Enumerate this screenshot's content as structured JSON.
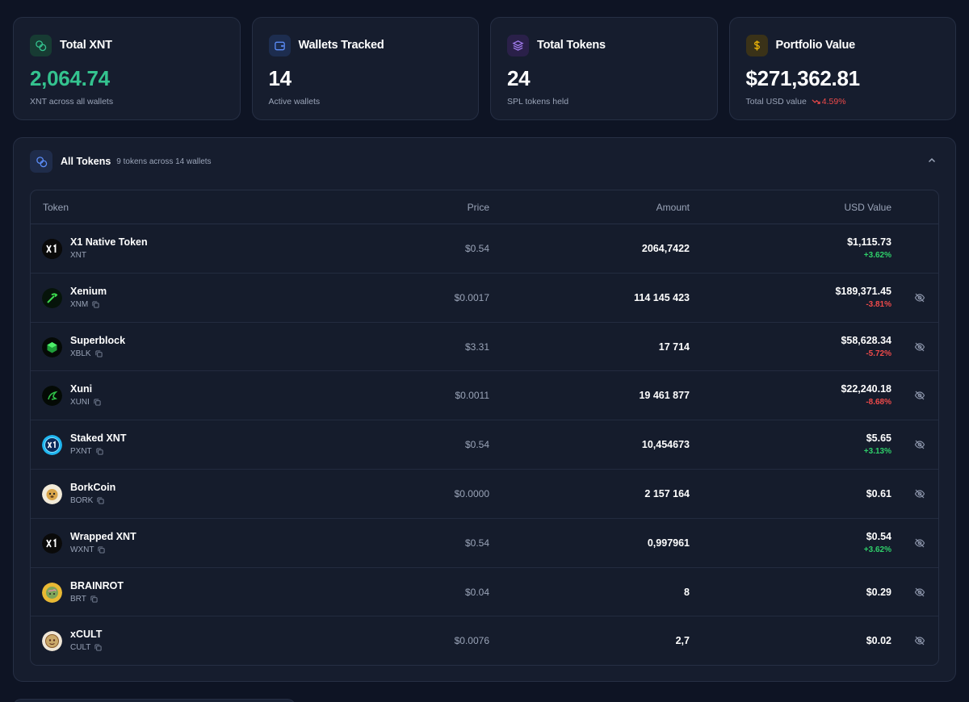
{
  "stats": [
    {
      "title": "Total XNT",
      "value": "2,064.74",
      "sub": "XNT across all wallets",
      "icon": "coins-icon",
      "accent": "#34c38f"
    },
    {
      "title": "Wallets Tracked",
      "value": "14",
      "sub": "Active wallets",
      "icon": "wallet-icon",
      "accent": "#3b82f6"
    },
    {
      "title": "Total Tokens",
      "value": "24",
      "sub": "SPL tokens held",
      "icon": "layers-icon",
      "accent": "#8b5cf6"
    },
    {
      "title": "Portfolio Value",
      "value": "$271,362.81",
      "sub": "Total USD value",
      "change": "4.59%",
      "icon": "dollar-icon",
      "accent": "#eab308"
    }
  ],
  "panel": {
    "title": "All Tokens",
    "subtitle": "9 tokens across 14 wallets",
    "icon": "coins-icon",
    "columns": {
      "token": "Token",
      "price": "Price",
      "amount": "Amount",
      "usd": "USD Value"
    }
  },
  "tokens": [
    {
      "name": "X1 Native Token",
      "symbol": "XNT",
      "price": "$0.54",
      "amount": "2064,7422",
      "usd": "$1,115.73",
      "change": "+3.62%",
      "dir": "up",
      "logo": "x1-logo",
      "copy": false,
      "hide": false
    },
    {
      "name": "Xenium",
      "symbol": "XNM",
      "price": "$0.0017",
      "amount": "114 145 423",
      "usd": "$189,371.45",
      "change": "-3.81%",
      "dir": "down",
      "logo": "xenium-logo",
      "copy": true,
      "hide": true
    },
    {
      "name": "Superblock",
      "symbol": "XBLK",
      "price": "$3.31",
      "amount": "17 714",
      "usd": "$58,628.34",
      "change": "-5.72%",
      "dir": "down",
      "logo": "superblock-logo",
      "copy": true,
      "hide": true
    },
    {
      "name": "Xuni",
      "symbol": "XUNI",
      "price": "$0.0011",
      "amount": "19 461 877",
      "usd": "$22,240.18",
      "change": "-8.68%",
      "dir": "down",
      "logo": "xuni-logo",
      "copy": true,
      "hide": true
    },
    {
      "name": "Staked XNT",
      "symbol": "PXNT",
      "price": "$0.54",
      "amount": "10,454673",
      "usd": "$5.65",
      "change": "+3.13%",
      "dir": "up",
      "logo": "staked-x1-logo",
      "copy": true,
      "hide": true
    },
    {
      "name": "BorkCoin",
      "symbol": "BORK",
      "price": "$0.0000",
      "amount": "2 157 164",
      "usd": "$0.61",
      "change": "",
      "dir": "",
      "logo": "bork-logo",
      "copy": true,
      "hide": true
    },
    {
      "name": "Wrapped XNT",
      "symbol": "WXNT",
      "price": "$0.54",
      "amount": "0,997961",
      "usd": "$0.54",
      "change": "+3.62%",
      "dir": "up",
      "logo": "x1-logo",
      "copy": true,
      "hide": true
    },
    {
      "name": "BRAINROT",
      "symbol": "BRT",
      "price": "$0.04",
      "amount": "8",
      "usd": "$0.29",
      "change": "",
      "dir": "",
      "logo": "brainrot-logo",
      "copy": true,
      "hide": true
    },
    {
      "name": "xCULT",
      "symbol": "CULT",
      "price": "$0.0076",
      "amount": "2,7",
      "usd": "$0.02",
      "change": "",
      "dir": "",
      "logo": "cult-logo",
      "copy": true,
      "hide": true
    }
  ],
  "colors": {
    "background": "#0e1424",
    "card": "#161d2e",
    "border": "#262f44",
    "positive": "#2fcf6a",
    "negative": "#ef4a4a",
    "green_value": "#34c38f"
  }
}
